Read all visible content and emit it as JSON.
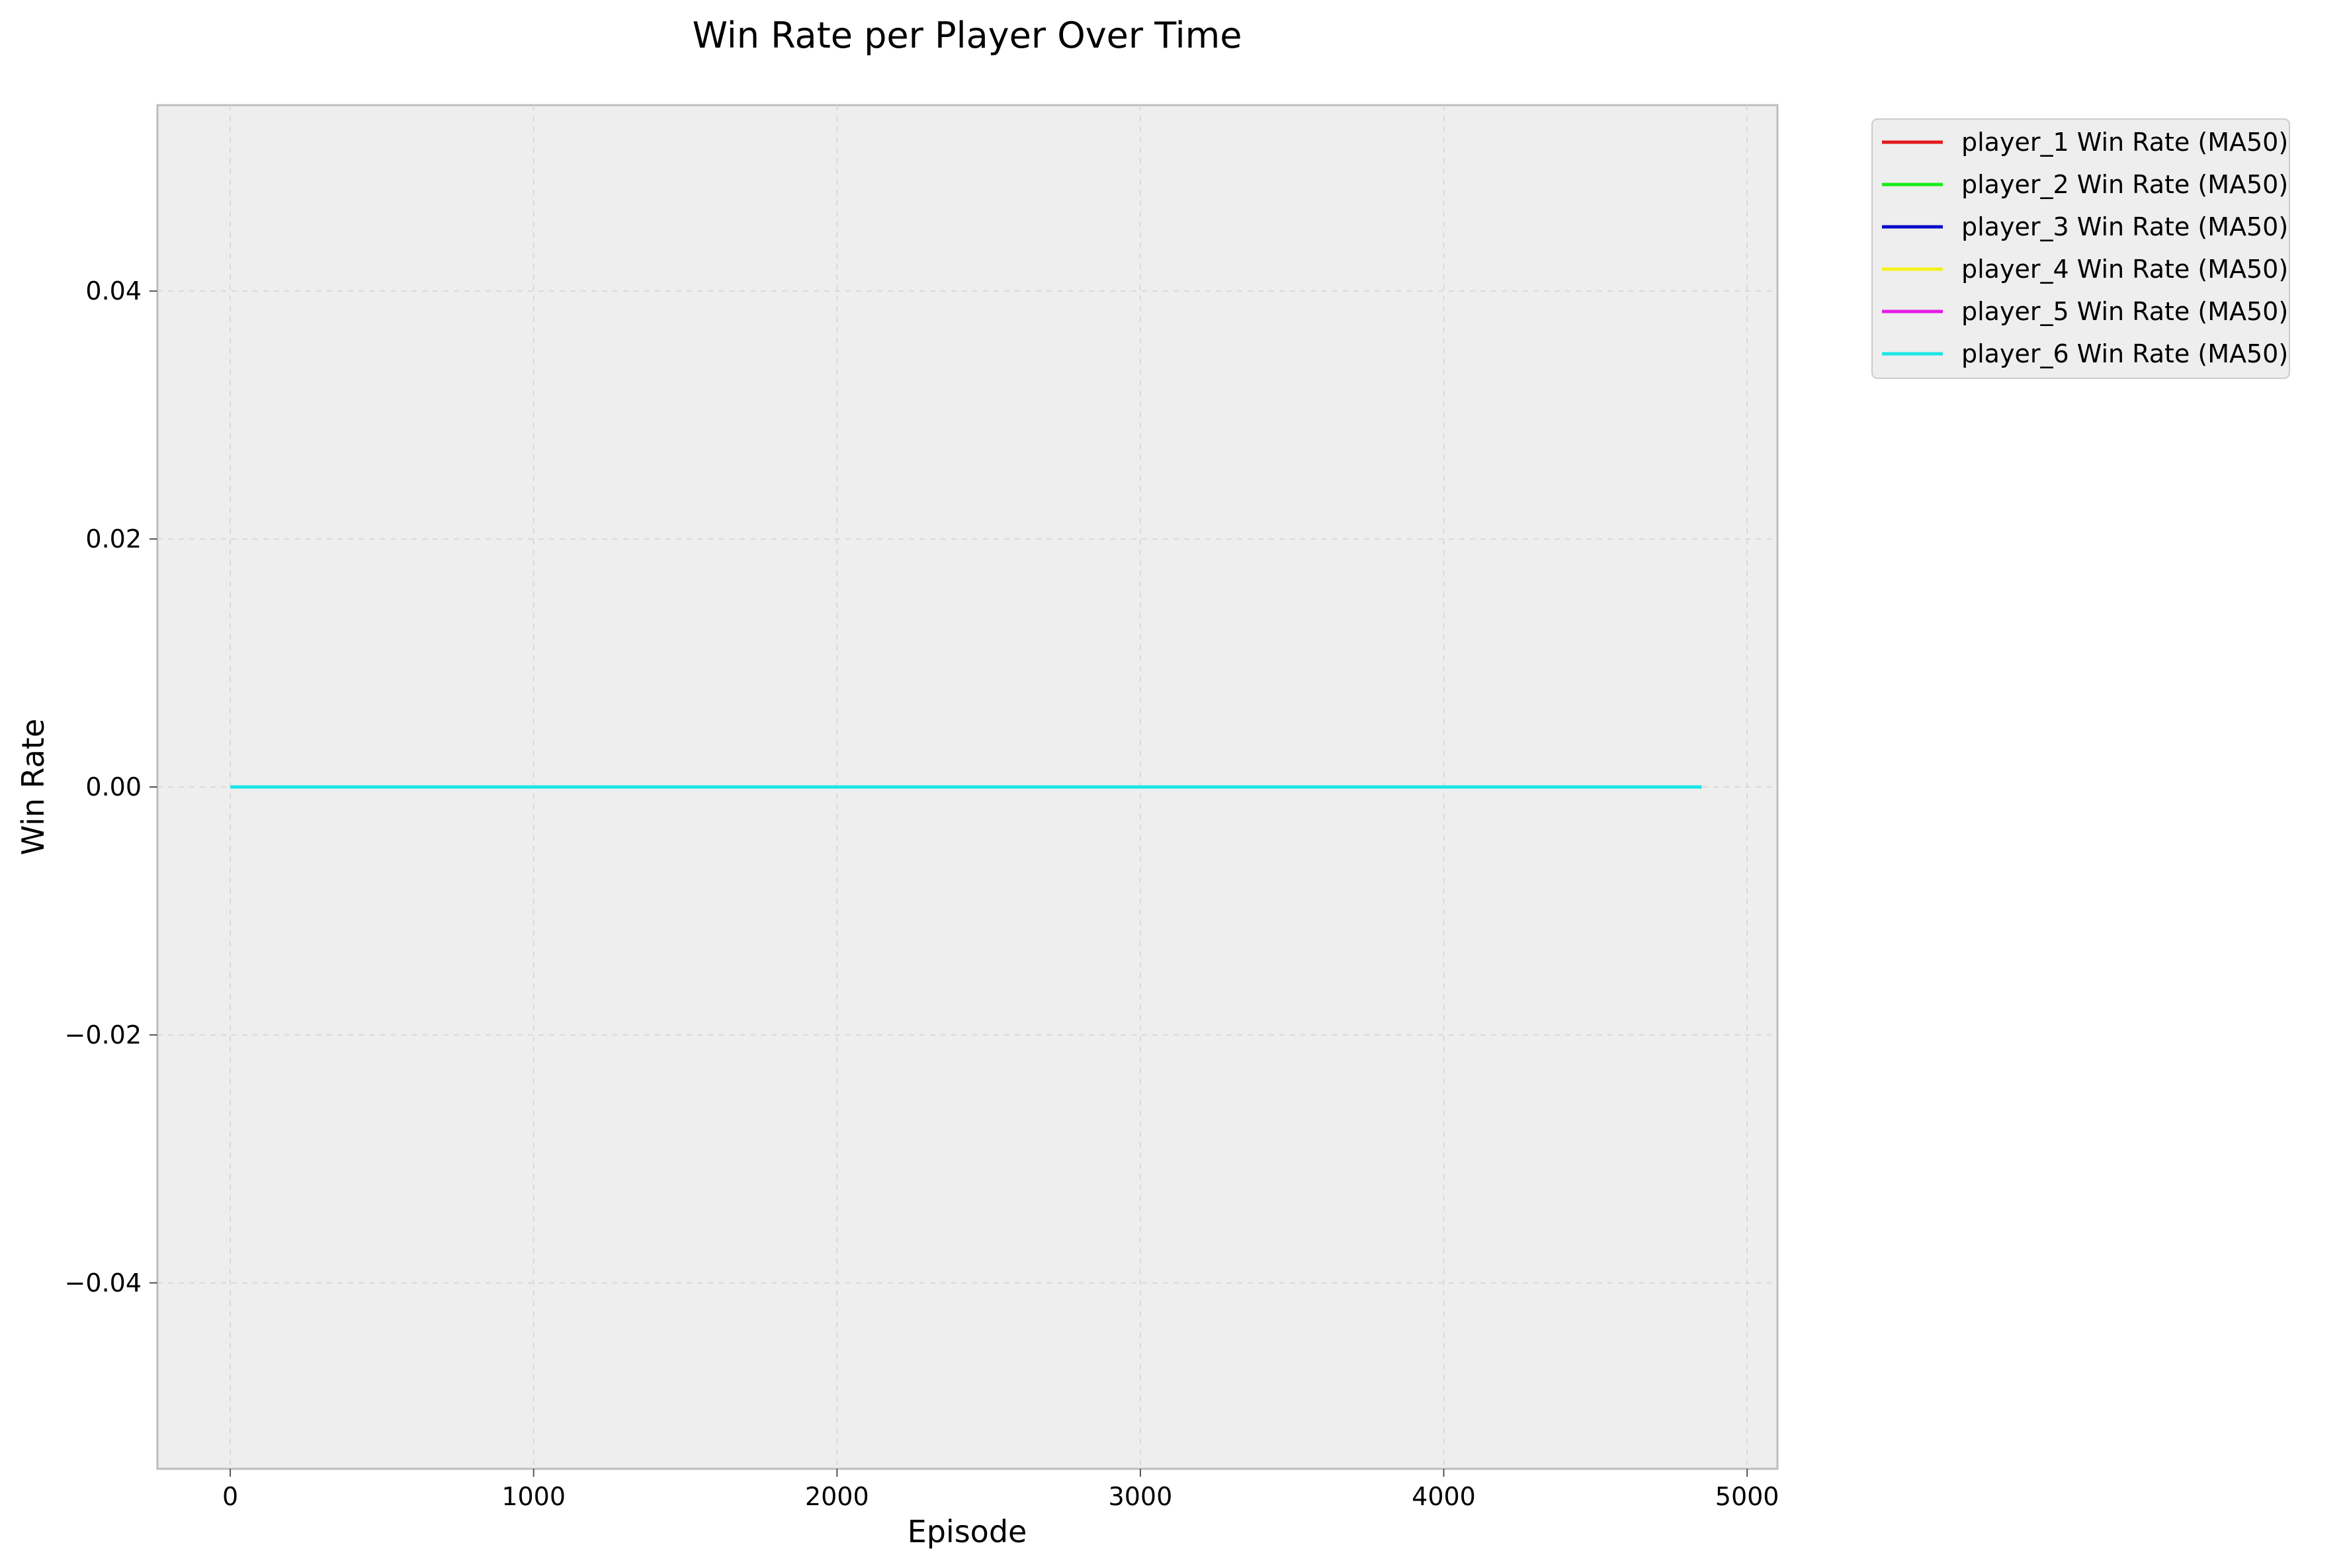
{
  "chart_data": {
    "type": "line",
    "title": "Win Rate per Player Over Time",
    "xlabel": "Episode",
    "ylabel": "Win Rate",
    "xlim": [
      -240,
      5100
    ],
    "ylim": [
      -0.055,
      0.055
    ],
    "xticks": [
      0,
      1000,
      2000,
      3000,
      4000,
      5000
    ],
    "xtick_labels": [
      "0",
      "1000",
      "2000",
      "3000",
      "4000",
      "5000"
    ],
    "yticks": [
      -0.04,
      -0.02,
      0.0,
      0.02,
      0.04
    ],
    "ytick_labels": [
      "−0.04",
      "−0.02",
      "0.00",
      "0.02",
      "0.04"
    ],
    "grid": true,
    "legend_position": "outside-top-right",
    "x": [
      0,
      4850
    ],
    "series": [
      {
        "name": "player_1 Win Rate (MA50)",
        "color": "#e41a1c",
        "values": [
          0,
          0
        ]
      },
      {
        "name": "player_2 Win Rate (MA50)",
        "color": "#1aea1a",
        "values": [
          0,
          0
        ]
      },
      {
        "name": "player_3 Win Rate (MA50)",
        "color": "#0a0ac8",
        "values": [
          0,
          0
        ]
      },
      {
        "name": "player_4 Win Rate (MA50)",
        "color": "#f2f21a",
        "values": [
          0,
          0
        ]
      },
      {
        "name": "player_5 Win Rate (MA50)",
        "color": "#e61ae6",
        "values": [
          0,
          0
        ]
      },
      {
        "name": "player_6 Win Rate (MA50)",
        "color": "#1ae6e6",
        "values": [
          0,
          0
        ]
      }
    ]
  }
}
